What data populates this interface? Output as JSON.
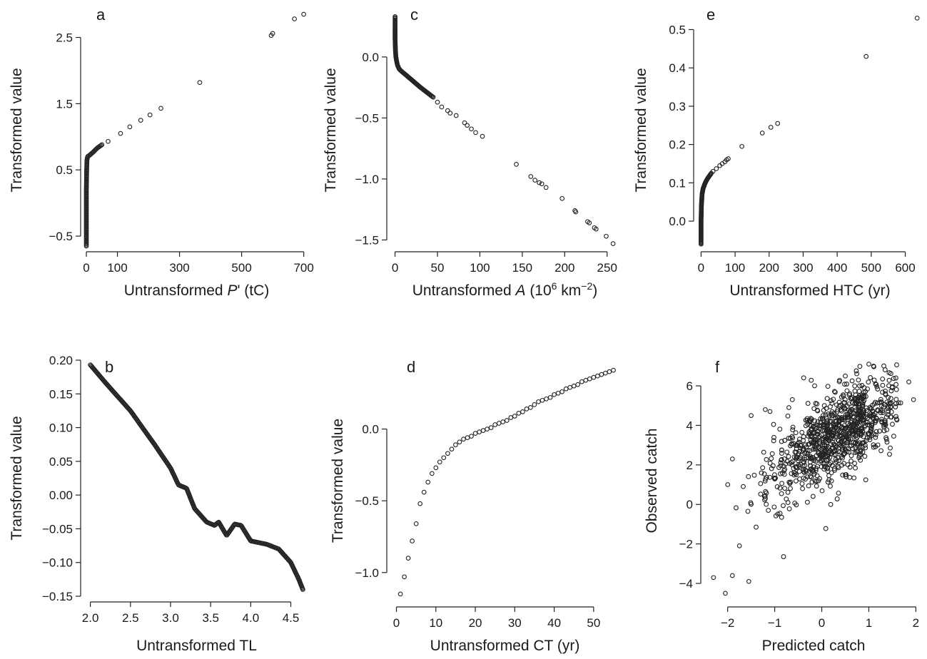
{
  "chart_data": [
    {
      "id": "a",
      "type": "scatter",
      "letter": "a",
      "xlabel": {
        "pre": "Untransformed ",
        "ital": "P",
        "post": "' (tC)"
      },
      "ylabel": "Transformed value",
      "xlim": [
        0,
        710
      ],
      "ylim": [
        -0.65,
        2.85
      ],
      "xticks": [
        0,
        100,
        300,
        500,
        700
      ],
      "yticks": [
        -0.5,
        0.5,
        1.5,
        2.5
      ],
      "ytick_labels": [
        "−0.5",
        "0.5",
        "1.5",
        "2.5"
      ],
      "dense_curves": [
        {
          "points": [
            [
              0,
              -0.65
            ],
            [
              0,
              0.2
            ],
            [
              1,
              0.5
            ],
            [
              2,
              0.65
            ],
            [
              4,
              0.7
            ],
            [
              10,
              0.72
            ],
            [
              20,
              0.76
            ],
            [
              35,
              0.83
            ],
            [
              50,
              0.88
            ]
          ],
          "n": 90
        }
      ],
      "points": [
        [
          70,
          0.93
        ],
        [
          110,
          1.05
        ],
        [
          140,
          1.15
        ],
        [
          175,
          1.25
        ],
        [
          205,
          1.33
        ],
        [
          240,
          1.43
        ],
        [
          365,
          1.82
        ],
        [
          595,
          2.53
        ],
        [
          600,
          2.56
        ],
        [
          670,
          2.78
        ],
        [
          700,
          2.85
        ]
      ]
    },
    {
      "id": "c",
      "type": "scatter",
      "letter": "c",
      "xlabel": {
        "pre": "Untransformed ",
        "ital": "A",
        "post": " (10",
        "sup": "6",
        "post2": " km",
        "sup2": "−2",
        "post3": ")"
      },
      "ylabel": "Transformed value",
      "xlim": [
        -3,
        262
      ],
      "ylim": [
        -1.55,
        0.35
      ],
      "xticks": [
        0,
        50,
        100,
        150,
        200,
        250
      ],
      "yticks": [
        -1.5,
        -1.0,
        -0.5,
        0.0
      ],
      "ytick_labels": [
        "−1.5",
        "−1.0",
        "−0.5",
        "0.0"
      ],
      "dense_curves": [
        {
          "points": [
            [
              0,
              0.33
            ],
            [
              0,
              0.15
            ],
            [
              0.5,
              0.05
            ],
            [
              1,
              0.0
            ],
            [
              2,
              -0.04
            ],
            [
              3,
              -0.07
            ],
            [
              5,
              -0.1
            ],
            [
              8,
              -0.12
            ],
            [
              15,
              -0.16
            ],
            [
              30,
              -0.25
            ],
            [
              45,
              -0.33
            ]
          ],
          "n": 90
        }
      ],
      "points": [
        [
          50,
          -0.37
        ],
        [
          55,
          -0.41
        ],
        [
          62,
          -0.44
        ],
        [
          65,
          -0.46
        ],
        [
          72,
          -0.48
        ],
        [
          82,
          -0.54
        ],
        [
          85,
          -0.56
        ],
        [
          90,
          -0.59
        ],
        [
          95,
          -0.62
        ],
        [
          103,
          -0.65
        ],
        [
          143,
          -0.88
        ],
        [
          160,
          -0.98
        ],
        [
          165,
          -1.01
        ],
        [
          170,
          -1.03
        ],
        [
          173,
          -1.04
        ],
        [
          178,
          -1.07
        ],
        [
          197,
          -1.16
        ],
        [
          212,
          -1.26
        ],
        [
          213,
          -1.27
        ],
        [
          227,
          -1.35
        ],
        [
          229,
          -1.36
        ],
        [
          235,
          -1.4
        ],
        [
          237,
          -1.41
        ],
        [
          249,
          -1.47
        ],
        [
          257,
          -1.53
        ]
      ]
    },
    {
      "id": "e",
      "type": "scatter",
      "letter": "e",
      "xlabel": {
        "pre": "Untransformed HTC (yr)"
      },
      "ylabel": "Transformed value",
      "xlim": [
        -5,
        645
      ],
      "ylim": [
        -0.065,
        0.54
      ],
      "xticks": [
        0,
        100,
        200,
        300,
        400,
        500,
        600
      ],
      "yticks": [
        0.0,
        0.1,
        0.2,
        0.3,
        0.4,
        0.5
      ],
      "ytick_labels": [
        "0.0",
        "0.1",
        "0.2",
        "0.3",
        "0.4",
        "0.5"
      ],
      "dense_curves": [
        {
          "points": [
            [
              0,
              -0.06
            ],
            [
              0,
              0.0
            ],
            [
              1,
              0.04
            ],
            [
              3,
              0.07
            ],
            [
              6,
              0.085
            ],
            [
              10,
              0.095
            ],
            [
              15,
              0.105
            ],
            [
              22,
              0.115
            ],
            [
              30,
              0.125
            ]
          ],
          "n": 80
        }
      ],
      "points": [
        [
          35,
          0.13
        ],
        [
          45,
          0.137
        ],
        [
          55,
          0.145
        ],
        [
          62,
          0.15
        ],
        [
          70,
          0.155
        ],
        [
          75,
          0.16
        ],
        [
          80,
          0.163
        ],
        [
          120,
          0.195
        ],
        [
          180,
          0.23
        ],
        [
          205,
          0.245
        ],
        [
          225,
          0.255
        ],
        [
          485,
          0.43
        ],
        [
          635,
          0.53
        ]
      ]
    },
    {
      "id": "b",
      "type": "scatter",
      "letter": "b",
      "xlabel": {
        "pre": "Untransformed TL"
      },
      "ylabel": "Transformed value",
      "xlim": [
        1.95,
        4.7
      ],
      "ylim": [
        -0.15,
        0.2
      ],
      "xticks": [
        2.0,
        2.5,
        3.0,
        3.5,
        4.0,
        4.5
      ],
      "xtick_labels": [
        "2.0",
        "2.5",
        "3.0",
        "3.5",
        "4.0",
        "4.5"
      ],
      "yticks": [
        -0.15,
        -0.1,
        -0.05,
        0.0,
        0.05,
        0.1,
        0.15,
        0.2
      ],
      "ytick_labels": [
        "−0.15",
        "−0.10",
        "−0.05",
        "0.00",
        "0.05",
        "0.10",
        "0.15",
        "0.20"
      ],
      "dense_curves": [
        {
          "points": [
            [
              2.0,
              0.193
            ],
            [
              2.2,
              0.165
            ],
            [
              2.5,
              0.125
            ],
            [
              2.8,
              0.075
            ],
            [
              3.0,
              0.04
            ],
            [
              3.1,
              0.015
            ],
            [
              3.2,
              0.01
            ],
            [
              3.3,
              -0.02
            ],
            [
              3.45,
              -0.04
            ],
            [
              3.55,
              -0.045
            ],
            [
              3.6,
              -0.04
            ],
            [
              3.7,
              -0.06
            ],
            [
              3.8,
              -0.043
            ],
            [
              3.88,
              -0.045
            ],
            [
              4.0,
              -0.068
            ],
            [
              4.2,
              -0.073
            ],
            [
              4.35,
              -0.08
            ],
            [
              4.5,
              -0.1
            ],
            [
              4.6,
              -0.125
            ],
            [
              4.65,
              -0.14
            ]
          ],
          "n": 220
        }
      ],
      "points": []
    },
    {
      "id": "d",
      "type": "scatter",
      "letter": "d",
      "xlabel": {
        "pre": "Untransformed CT (yr)"
      },
      "ylabel": "Transformed value",
      "xlim": [
        -1,
        56
      ],
      "ylim": [
        -1.2,
        0.48
      ],
      "xticks": [
        0,
        10,
        20,
        30,
        40,
        50
      ],
      "yticks": [
        -1.0,
        -0.5,
        0.0
      ],
      "ytick_labels": [
        "−1.0",
        "−0.5",
        "0.0"
      ],
      "dense_curves": [],
      "points": [
        [
          1,
          -1.15
        ],
        [
          2,
          -1.03
        ],
        [
          3,
          -0.9
        ],
        [
          4,
          -0.78
        ],
        [
          5,
          -0.66
        ],
        [
          6,
          -0.52
        ],
        [
          7,
          -0.44
        ],
        [
          8,
          -0.37
        ],
        [
          9,
          -0.31
        ],
        [
          10,
          -0.27
        ],
        [
          11,
          -0.23
        ],
        [
          12,
          -0.2
        ],
        [
          13,
          -0.17
        ],
        [
          14,
          -0.14
        ],
        [
          15,
          -0.11
        ],
        [
          16,
          -0.09
        ],
        [
          17,
          -0.07
        ],
        [
          18,
          -0.06
        ],
        [
          19,
          -0.05
        ],
        [
          20,
          -0.03
        ],
        [
          21,
          -0.02
        ],
        [
          22,
          -0.01
        ],
        [
          23,
          0.0
        ],
        [
          24,
          0.01
        ],
        [
          25,
          0.03
        ],
        [
          26,
          0.04
        ],
        [
          27,
          0.05
        ],
        [
          28,
          0.06
        ],
        [
          29,
          0.08
        ],
        [
          30,
          0.09
        ],
        [
          31,
          0.11
        ],
        [
          32,
          0.12
        ],
        [
          33,
          0.14
        ],
        [
          34,
          0.15
        ],
        [
          35,
          0.17
        ],
        [
          36,
          0.19
        ],
        [
          37,
          0.2
        ],
        [
          38,
          0.21
        ],
        [
          39,
          0.22
        ],
        [
          40,
          0.24
        ],
        [
          41,
          0.25
        ],
        [
          42,
          0.26
        ],
        [
          43,
          0.28
        ],
        [
          44,
          0.29
        ],
        [
          45,
          0.3
        ],
        [
          46,
          0.31
        ],
        [
          47,
          0.33
        ],
        [
          48,
          0.34
        ],
        [
          49,
          0.35
        ],
        [
          50,
          0.36
        ],
        [
          51,
          0.37
        ],
        [
          52,
          0.38
        ],
        [
          53,
          0.39
        ],
        [
          54,
          0.4
        ],
        [
          55,
          0.41
        ]
      ]
    },
    {
      "id": "f",
      "type": "scatter",
      "letter": "f",
      "xlabel": {
        "pre": "Predicted catch"
      },
      "ylabel": "Observed catch",
      "xlim": [
        -2.45,
        2.1
      ],
      "ylim": [
        -4.9,
        7.3
      ],
      "xticks": [
        -2,
        -1,
        0,
        1,
        2
      ],
      "xtick_labels": [
        "−2",
        "−1",
        "0",
        "1",
        "2"
      ],
      "yticks": [
        -4,
        -2,
        0,
        2,
        4,
        6
      ],
      "ytick_labels": [
        "−4",
        "−2",
        "0",
        "2",
        "4",
        "6"
      ],
      "cloud": {
        "n": 900,
        "x_mean": 0.35,
        "x_sd": 0.75,
        "x_skew": "left",
        "slope": 1.55,
        "intercept": 3.1,
        "residual_sd": 1.1,
        "x_range": [
          -2.3,
          1.95
        ],
        "y_range": [
          -4.5,
          7.1
        ]
      },
      "points": [
        [
          -2.3,
          -3.7
        ],
        [
          -2.05,
          -4.5
        ],
        [
          -1.9,
          -3.6
        ],
        [
          -1.75,
          -2.1
        ],
        [
          -1.55,
          -3.9
        ],
        [
          -1.5,
          4.5
        ],
        [
          -1.2,
          4.8
        ],
        [
          -1.1,
          4.7
        ],
        [
          -0.7,
          4.9
        ],
        [
          1.0,
          7.1
        ],
        [
          1.1,
          7.0
        ],
        [
          1.85,
          6.2
        ],
        [
          1.95,
          5.3
        ],
        [
          -1.9,
          2.3
        ],
        [
          -2.0,
          1.0
        ]
      ]
    }
  ]
}
